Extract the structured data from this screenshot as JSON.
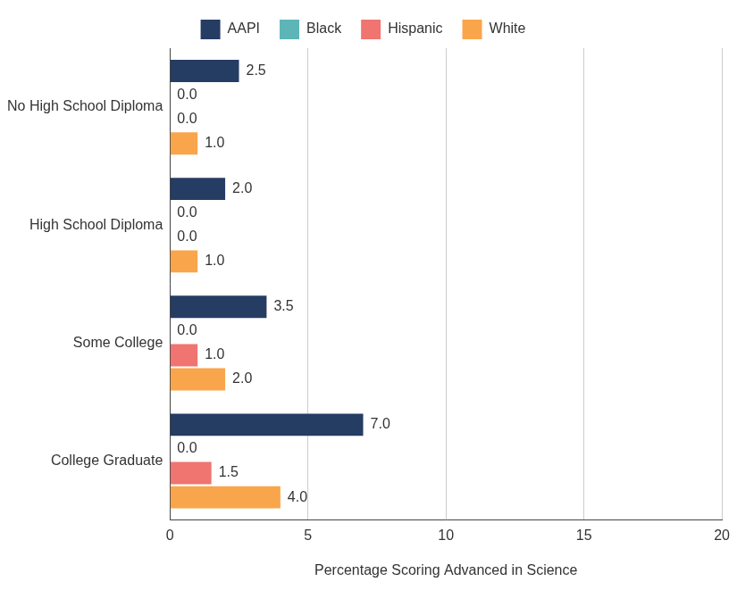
{
  "chart_data": {
    "type": "bar",
    "orientation": "horizontal",
    "categories": [
      "No High School Diploma",
      "High School Diploma",
      "Some College",
      "College Graduate"
    ],
    "series": [
      {
        "name": "AAPI",
        "color": "#253c63",
        "values": [
          2.5,
          2.0,
          3.5,
          7.0
        ],
        "value_labels": [
          "2.5",
          "2.0",
          "3.5",
          "7.0"
        ]
      },
      {
        "name": "Black",
        "color": "#5db5b8",
        "values": [
          0,
          0,
          0,
          0
        ],
        "value_labels": [
          "0.0",
          "0.0",
          "0.0",
          "0.0"
        ]
      },
      {
        "name": "Hispanic",
        "color": "#f07470",
        "values": [
          0,
          0,
          1.0,
          1.5
        ],
        "value_labels": [
          "0.0",
          "0.0",
          "1.0",
          "1.5"
        ]
      },
      {
        "name": "White",
        "color": "#f9a54b",
        "values": [
          1.0,
          1.0,
          2.0,
          4.0
        ],
        "value_labels": [
          "1.0",
          "1.0",
          "2.0",
          "4.0"
        ]
      }
    ],
    "x_label": "Percentage Scoring Advanced in Science",
    "xlim": [
      0,
      20
    ],
    "xticks": [
      0,
      5,
      10,
      15,
      20
    ],
    "grid": true,
    "legend": "top",
    "data_labels": true
  }
}
